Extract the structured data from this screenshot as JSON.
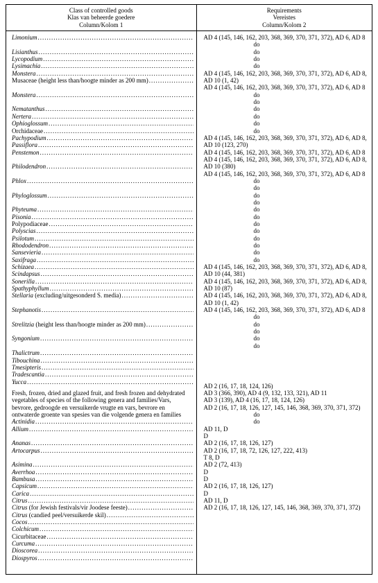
{
  "header": {
    "col1_line1": "Class of controlled goods",
    "col1_line2": "Klas van beheerde goedere",
    "col1_line3": "Column/Kolom 1",
    "col2_line1": "Requirements",
    "col2_line2": "Vereistes",
    "col2_line3": "Column/Kolom 2"
  },
  "intro": "Fresh, frozen, dried and glazed fruit, and fresh frozen and dehydrated vegetables of species of the following genera and families/Vars, bevrore, gedroogde en versuikerde vrugte en vars, bevrore en ontwaterde groente van spesies van die volgende genera en families",
  "rows1": [
    {
      "n": "Limonium",
      "it": true,
      "r": "AD 4 (145, 146, 162, 203, 368, 369, 370, 371, 372), AD 6, AD 8"
    },
    {
      "n": "Lisianthus",
      "it": true,
      "r": "do",
      "do": true
    },
    {
      "n": "Lycopodium",
      "it": true,
      "r": "do",
      "do": true
    },
    {
      "n": "Lysimachia",
      "it": true,
      "r": "do",
      "do": true
    },
    {
      "n": "Monstera",
      "it": true,
      "r": "do",
      "do": true
    },
    {
      "n": "Musaceae",
      "suffix": " (height less than/hoogte minder as 200 mm)",
      "it": false,
      "r": "AD 4 (145, 146, 162, 203, 368, 369, 370, 371, 372), AD 6, AD 8, AD 10 (1, 42)"
    },
    {
      "n": "Monstera",
      "it": true,
      "r": "AD 4 (145, 146, 162, 203, 368, 369, 370, 371, 372), AD 6, AD 8"
    },
    {
      "n": "Nematanthus",
      "it": true,
      "r": "do",
      "do": true
    },
    {
      "n": "Nertera",
      "it": true,
      "r": "do",
      "do": true
    },
    {
      "n": "Ophioglossum",
      "it": true,
      "r": "do",
      "do": true
    },
    {
      "n": "Orchidaceae",
      "it": false,
      "r": "do",
      "do": true
    },
    {
      "n": "Pachypodium",
      "it": true,
      "r": "do",
      "do": true
    },
    {
      "n": "Passiflora",
      "it": true,
      "r": "do",
      "do": true
    },
    {
      "n": "Penstemon",
      "it": true,
      "r": "AD 4 (145, 146, 162, 203, 368, 369, 370, 371, 372), AD 6, AD 8, AD 10 (123, 270)"
    },
    {
      "n": "Philodendron",
      "it": true,
      "r": "AD 4 (145, 146, 162, 203, 368, 369, 370, 371, 372), AD 6, AD 8"
    },
    {
      "n": "Phlox",
      "it": true,
      "r": "AD 4 (145, 146, 162, 203, 368, 369, 370, 371, 372), AD 6, AD 8, AD 10 (380)"
    },
    {
      "n": "Phyloglossum",
      "it": true,
      "r": "AD 4 (145, 146, 162, 203, 368, 369, 370, 371, 372), AD 6, AD 8"
    },
    {
      "n": "Phyteuma",
      "it": true,
      "r": "do",
      "do": true
    },
    {
      "n": "Pisonia",
      "it": true,
      "r": "do",
      "do": true
    },
    {
      "n": "Polypodiaceae",
      "it": false,
      "r": "do",
      "do": true
    },
    {
      "n": "Polyscias",
      "it": true,
      "r": "do",
      "do": true
    },
    {
      "n": "Psilotum",
      "it": true,
      "r": "do",
      "do": true
    },
    {
      "n": "Rhododendron",
      "it": true,
      "r": "do",
      "do": true
    },
    {
      "n": "Sansevieria",
      "it": true,
      "r": "do",
      "do": true
    },
    {
      "n": "Saxifraga",
      "it": true,
      "r": "do",
      "do": true
    },
    {
      "n": "Schizaea",
      "it": true,
      "r": "do",
      "do": true
    },
    {
      "n": "Scindapsus",
      "it": true,
      "r": "do",
      "do": true
    },
    {
      "n": "Sonerilla",
      "it": true,
      "r": "do",
      "do": true
    },
    {
      "n": "Spathyphyllum",
      "it": true,
      "r": "do",
      "do": true
    },
    {
      "n": "Stellaria",
      "suffix": " (excluding/uitgesonderd S. media)",
      "it": true,
      "r": "AD 4 (145, 146, 162, 203, 368, 369, 370, 371, 372), AD 6, AD 8, AD 10 (44, 381)"
    },
    {
      "n": "Stephanotis",
      "it": true,
      "r": "AD 4 (145, 146, 162, 203, 368, 369, 370, 371, 372), AD 6, AD 8, AD 10 (87)"
    },
    {
      "n": "Strelitzia",
      "suffix": " (height less than/hoogte minder as 200 mm)",
      "it": true,
      "r": "AD 4 (145, 146, 162, 203, 368, 369, 370, 371, 372), AD 6, AD 8, AD 10 (1, 42)"
    },
    {
      "n": "Syngonium",
      "it": true,
      "r": "AD 4 (145, 146, 162, 203, 368, 369, 370, 371, 372), AD 6, AD 8"
    },
    {
      "n": "Thalictrum",
      "it": true,
      "r": "do",
      "do": true
    },
    {
      "n": "Tibouchina",
      "it": true,
      "r": "do",
      "do": true
    },
    {
      "n": "Tmesipteris",
      "it": true,
      "r": "do",
      "do": true
    },
    {
      "n": "Tradescantia",
      "it": true,
      "r": "do",
      "do": true
    },
    {
      "n": "Yucca",
      "it": true,
      "r": "do",
      "do": true
    }
  ],
  "rows2": [
    {
      "n": "Actinidia",
      "it": true,
      "r": "AD 2 (16, 17, 18, 124, 126)"
    },
    {
      "n": "Allium",
      "it": true,
      "r": "AD 3 (366, 390), AD 4 (9, 132, 133, 321), AD 11"
    },
    {
      "n": "Ananas",
      "it": true,
      "r": "AD 3 (139), AD 4 (16, 17, 18, 124, 126)"
    },
    {
      "n": "Artocarpus",
      "it": true,
      "r": "AD 2 (16, 17, 18, 126, 127, 145, 146, 368, 369, 370, 371, 372)"
    },
    {
      "n": "Asimina",
      "it": true,
      "r": "do",
      "do": true
    },
    {
      "n": "Averrhoa",
      "it": true,
      "r": "do",
      "do": true
    },
    {
      "n": "Bambusa",
      "it": true,
      "r": "AD 11, D"
    },
    {
      "n": "Capsicum",
      "it": true,
      "r": "D"
    },
    {
      "n": "Carica",
      "it": true,
      "r": "AD 2 (16, 17, 18, 126, 127)"
    },
    {
      "n": "Citrus",
      "it": true,
      "r": "AD 2 (16, 17, 18, 72, 126, 127, 222, 413)"
    },
    {
      "n": "Citrus",
      "suffix": " (for Jewish festivals/vir Joodese feeste)",
      "it": true,
      "r": "T 8, D"
    },
    {
      "n": "Citrus",
      "suffix": " (candied peel/versuikerde skil)",
      "it": true,
      "r": "AD 2 (72, 413)"
    },
    {
      "n": "Cocos",
      "it": true,
      "r": "D"
    },
    {
      "n": "Colchicum",
      "it": true,
      "r": "D"
    },
    {
      "n": "Cicurbitaceae",
      "it": false,
      "r": "AD 2 (16, 17, 18, 126, 127)"
    },
    {
      "n": "Curcuma",
      "it": true,
      "r": "D"
    },
    {
      "n": "Dioscorea",
      "it": true,
      "r": "AD 11, D"
    },
    {
      "n": "Diospyros",
      "it": true,
      "r": "AD 2 (16, 17, 18, 126, 127, 145, 146, 368, 369, 370, 371, 372)"
    }
  ]
}
